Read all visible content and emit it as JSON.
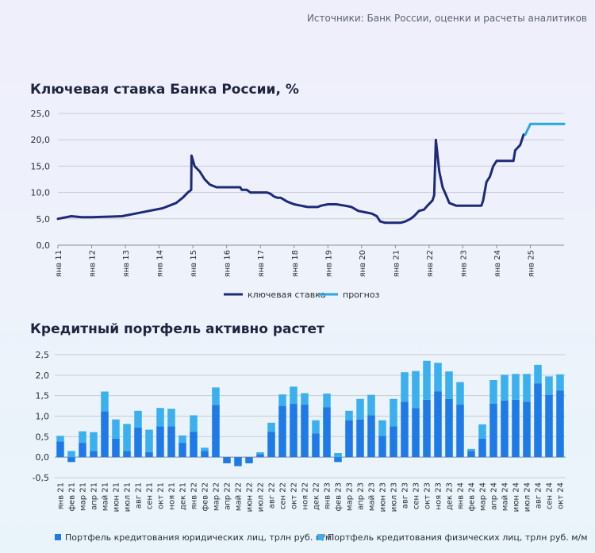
{
  "source_note": "Источники: Банк России, оценки и расчеты аналитиков",
  "colors": {
    "dark": "#1d2a78",
    "light": "#27a8e0",
    "business": "#1d7ae6",
    "retail": "#3bb0ee"
  },
  "chart_data": [
    {
      "type": "line",
      "title": "Ключевая ставка Банка России, %",
      "ylim": [
        0,
        25
      ],
      "yticks": [
        "0,0",
        "5,0",
        "10,0",
        "15,0",
        "20,0",
        "25,0"
      ],
      "xlim": [
        2011,
        2025.999
      ],
      "xtick_labels": [
        "янв 11",
        "янв 12",
        "янв 13",
        "янв 14",
        "янв 15",
        "янв 16",
        "янв 17",
        "янв 18",
        "янв 19",
        "янв 20",
        "янв 21",
        "янв 22",
        "янв 23",
        "янв 24",
        "янв 25"
      ],
      "grid": "horizontal",
      "legend_placement": "bottom",
      "series": [
        {
          "name": "ключевая ставка",
          "x": [
            2011.0,
            2011.4,
            2011.7,
            2012.0,
            2012.5,
            2012.9,
            2013.3,
            2013.7,
            2014.1,
            2014.3,
            2014.5,
            2014.7,
            2014.85,
            2014.95,
            2014.96,
            2015.05,
            2015.2,
            2015.35,
            2015.5,
            2015.7,
            2016.0,
            2016.4,
            2016.45,
            2016.6,
            2016.7,
            2016.95,
            2017.2,
            2017.3,
            2017.4,
            2017.5,
            2017.6,
            2017.8,
            2018.0,
            2018.2,
            2018.4,
            2018.7,
            2018.8,
            2019.0,
            2019.25,
            2019.5,
            2019.7,
            2019.9,
            2020.1,
            2020.3,
            2020.45,
            2020.55,
            2020.7,
            2021.0,
            2021.15,
            2021.3,
            2021.45,
            2021.55,
            2021.7,
            2021.85,
            2021.95,
            2022.1,
            2022.15,
            2022.2,
            2022.3,
            2022.4,
            2022.5,
            2022.6,
            2022.8,
            2023.0,
            2023.3,
            2023.55,
            2023.6,
            2023.7,
            2023.8,
            2023.9,
            2024.0,
            2024.2,
            2024.4,
            2024.5,
            2024.55,
            2024.7,
            2024.8,
            2024.85
          ],
          "values": [
            5.0,
            5.5,
            5.3,
            5.3,
            5.4,
            5.5,
            6.0,
            6.5,
            7.0,
            7.5,
            8.0,
            9.0,
            10.0,
            10.5,
            17.0,
            15.0,
            14.0,
            12.5,
            11.5,
            11.0,
            11.0,
            11.0,
            10.5,
            10.5,
            10.0,
            10.0,
            10.0,
            9.75,
            9.25,
            9.0,
            9.0,
            8.25,
            7.75,
            7.5,
            7.25,
            7.25,
            7.5,
            7.75,
            7.75,
            7.5,
            7.25,
            6.5,
            6.25,
            6.0,
            5.5,
            4.5,
            4.25,
            4.25,
            4.25,
            4.5,
            5.0,
            5.5,
            6.5,
            6.75,
            7.5,
            8.5,
            9.5,
            20.0,
            14.0,
            11.0,
            9.5,
            8.0,
            7.5,
            7.5,
            7.5,
            7.5,
            8.5,
            12.0,
            13.0,
            15.0,
            16.0,
            16.0,
            16.0,
            16.0,
            18.0,
            19.0,
            21.0,
            21.0
          ],
          "color": "#1d2a78"
        },
        {
          "name": "прогноз",
          "x": [
            2024.85,
            2025.0,
            2025.999
          ],
          "values": [
            21.0,
            23.0,
            23.0
          ],
          "color": "#27a8e0"
        }
      ]
    },
    {
      "type": "bar",
      "stacked": true,
      "title": "Кредитный портфель активно растет",
      "ylim": [
        -0.5,
        2.5
      ],
      "yticks": [
        "-0,5",
        "0,0",
        "0,5",
        "1,0",
        "1,5",
        "2,0",
        "2,5"
      ],
      "categories": [
        "янв 21",
        "фев 21",
        "мар 21",
        "апр 21",
        "май 21",
        "июн 21",
        "июл 21",
        "авг 21",
        "сен 21",
        "окт 21",
        "ноя 21",
        "дек 21",
        "янв 22",
        "фев 22",
        "мар 22",
        "апр 22",
        "май 22",
        "июн 22",
        "июл 22",
        "авг 22",
        "сен 22",
        "окт 22",
        "ноя 22",
        "дек 22",
        "янв 23",
        "фев 23",
        "мар 23",
        "апр 23",
        "май 23",
        "июн 23",
        "июл 23",
        "авг 23",
        "сен 23",
        "окт 23",
        "ноя 23",
        "дек 23",
        "янв 24",
        "фев 24",
        "мар 24",
        "апр 24",
        "май 24",
        "июн 24",
        "июл 24",
        "авг 24",
        "сен 24",
        "окт 24"
      ],
      "grid": "horizontal",
      "legend_placement": "bottom",
      "series": [
        {
          "name": "Портфель кредитования юридических лиц, трлн руб. м/м",
          "color": "#1d7ae6",
          "values": [
            0.38,
            -0.12,
            0.35,
            0.15,
            1.12,
            0.45,
            0.15,
            0.72,
            0.12,
            0.75,
            0.75,
            0.35,
            0.62,
            0.15,
            1.27,
            -0.15,
            -0.22,
            -0.15,
            0.07,
            0.62,
            1.25,
            1.3,
            1.28,
            0.58,
            1.22,
            -0.12,
            0.9,
            0.92,
            1.02,
            0.52,
            0.75,
            1.35,
            1.2,
            1.4,
            1.6,
            1.42,
            1.28,
            0.15,
            0.45,
            1.3,
            1.38,
            1.4,
            1.35,
            1.8,
            1.52,
            1.62
          ]
        },
        {
          "name": "Портфель кредитования физических лиц, трлн руб. м/м",
          "color": "#3bb0ee",
          "values": [
            0.14,
            0.15,
            0.28,
            0.46,
            0.48,
            0.47,
            0.66,
            0.41,
            0.55,
            0.45,
            0.43,
            0.18,
            0.4,
            0.08,
            0.43,
            0.0,
            0.0,
            0.0,
            0.05,
            0.22,
            0.28,
            0.42,
            0.28,
            0.32,
            0.33,
            0.1,
            0.23,
            0.5,
            0.5,
            0.38,
            0.67,
            0.72,
            0.9,
            0.95,
            0.7,
            0.67,
            0.55,
            0.05,
            0.35,
            0.58,
            0.63,
            0.63,
            0.68,
            0.45,
            0.45,
            0.4
          ]
        }
      ]
    }
  ]
}
